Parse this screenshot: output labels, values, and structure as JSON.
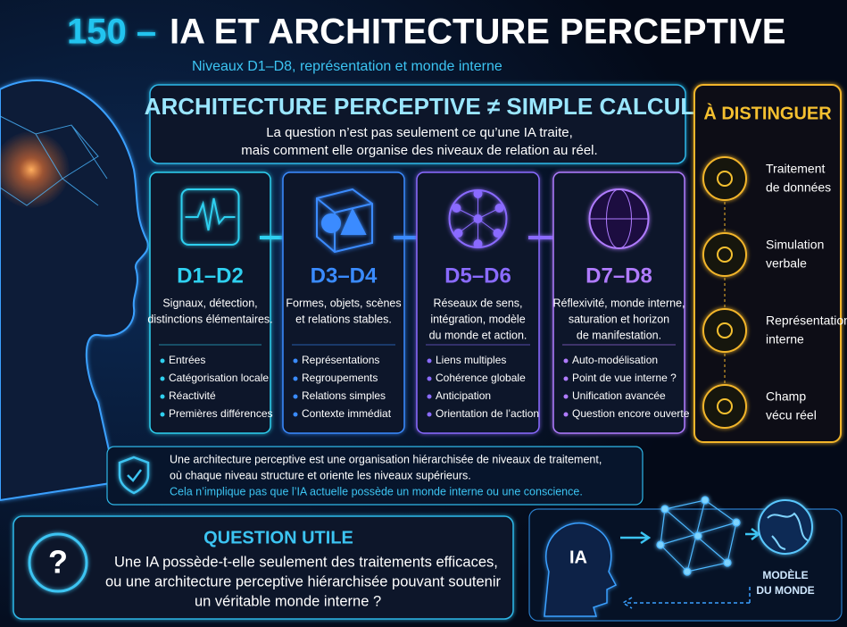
{
  "header": {
    "number": "150 –",
    "title": "IA ET ARCHITECTURE PERCEPTIVE",
    "subtitle": "Niveaux D1–D8, représentation et monde interne"
  },
  "intro": {
    "title": "ARCHITECTURE PERCEPTIVE ≠ SIMPLE CALCUL",
    "lines": [
      "La question n’est pas seulement ce qu’une IA traite,",
      "mais comment elle organise des niveaux de relation au réel."
    ]
  },
  "levels": [
    {
      "label": "D1–D2",
      "description": [
        "Signaux, détection,",
        "distinctions élémentaires."
      ],
      "items": [
        "Entrées",
        "Catégorisation locale",
        "Réactivité",
        "Premières différences"
      ]
    },
    {
      "label": "D3–D4",
      "description": [
        "Formes, objets, scènes",
        "et relations stables."
      ],
      "items": [
        "Représentations",
        "Regroupements",
        "Relations simples",
        "Contexte immédiat"
      ]
    },
    {
      "label": "D5–D6",
      "description": [
        "Réseaux de sens,",
        "intégration, modèle",
        "du monde et action."
      ],
      "items": [
        "Liens multiples",
        "Cohérence globale",
        "Anticipation",
        "Orientation de l’action"
      ]
    },
    {
      "label": "D7–D8",
      "description": [
        "Réflexivité, monde interne,",
        "saturation et horizon",
        "de manifestation."
      ],
      "items": [
        "Auto-modélisation",
        "Point de vue interne ?",
        "Unification avancée",
        "Question encore ouverte"
      ]
    }
  ],
  "distinguish": {
    "title": "À DISTINGUER",
    "items": [
      [
        "Traitement",
        "de données"
      ],
      [
        "Simulation",
        "verbale"
      ],
      [
        "Représentation",
        "interne"
      ],
      [
        "Champ",
        "vécu réel"
      ]
    ]
  },
  "definition": {
    "lines": [
      "Une architecture perceptive est une organisation hiérarchisée de niveaux de traitement,",
      "où chaque niveau structure et oriente les niveaux supérieurs."
    ],
    "note": "Cela n’implique pas que l’IA actuelle possède un monde interne ou une conscience."
  },
  "question": {
    "symbol": "?",
    "title": "QUESTION UTILE",
    "lines": [
      "Une IA possède-t-elle seulement des traitements efficaces,",
      "ou une architecture perceptive hiérarchisée pouvant soutenir",
      "un véritable monde interne ?"
    ]
  },
  "model": {
    "agent": "IA",
    "world": [
      "MODÈLE",
      "DU MONDE"
    ]
  }
}
